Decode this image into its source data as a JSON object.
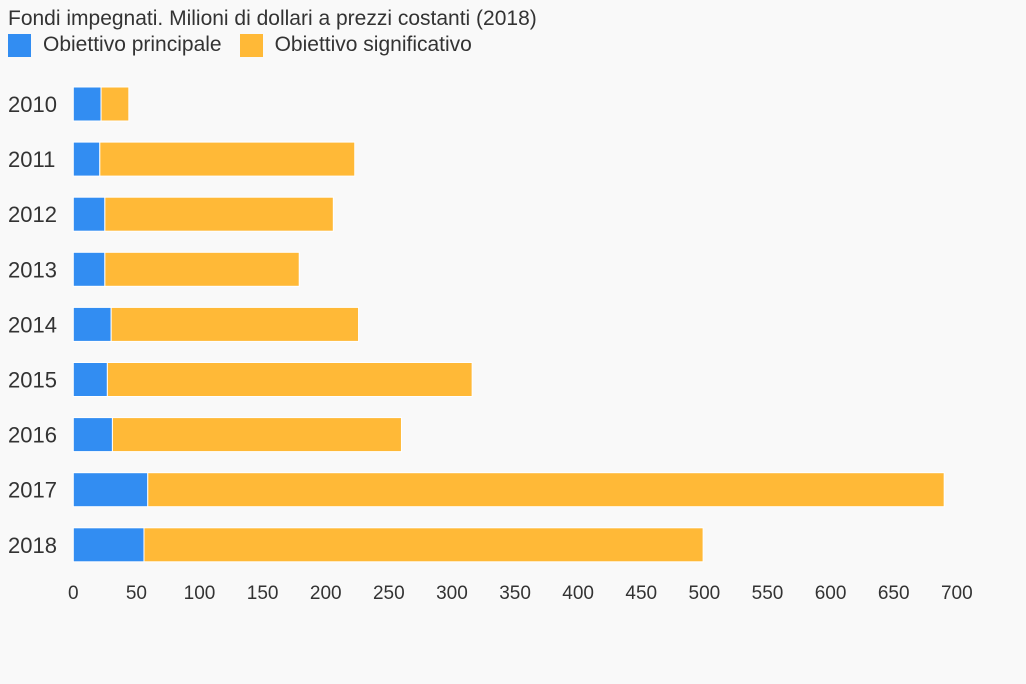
{
  "chart_data": {
    "type": "bar",
    "orientation": "horizontal",
    "stacked": true,
    "title": "Fondi impegnati. Milioni di dollari a prezzi costanti (2018)",
    "categories": [
      "2010",
      "2011",
      "2012",
      "2013",
      "2014",
      "2015",
      "2016",
      "2017",
      "2018"
    ],
    "series": [
      {
        "name": "Obiettivo principale",
        "color": "#328df2",
        "values": [
          22,
          21,
          25,
          25,
          30,
          27,
          31,
          59,
          56
        ]
      },
      {
        "name": "Obiettivo significativo",
        "color": "#ffb937",
        "values": [
          22,
          202,
          181,
          154,
          196,
          289,
          229,
          631,
          443
        ]
      }
    ],
    "xlim": [
      0,
      700
    ],
    "xticks": [
      "0",
      "50",
      "100",
      "150",
      "200",
      "250",
      "300",
      "350",
      "400",
      "450",
      "500",
      "550",
      "600",
      "650",
      "700"
    ],
    "xlabel": "",
    "ylabel": "",
    "grid": false,
    "legend": "top-left"
  }
}
